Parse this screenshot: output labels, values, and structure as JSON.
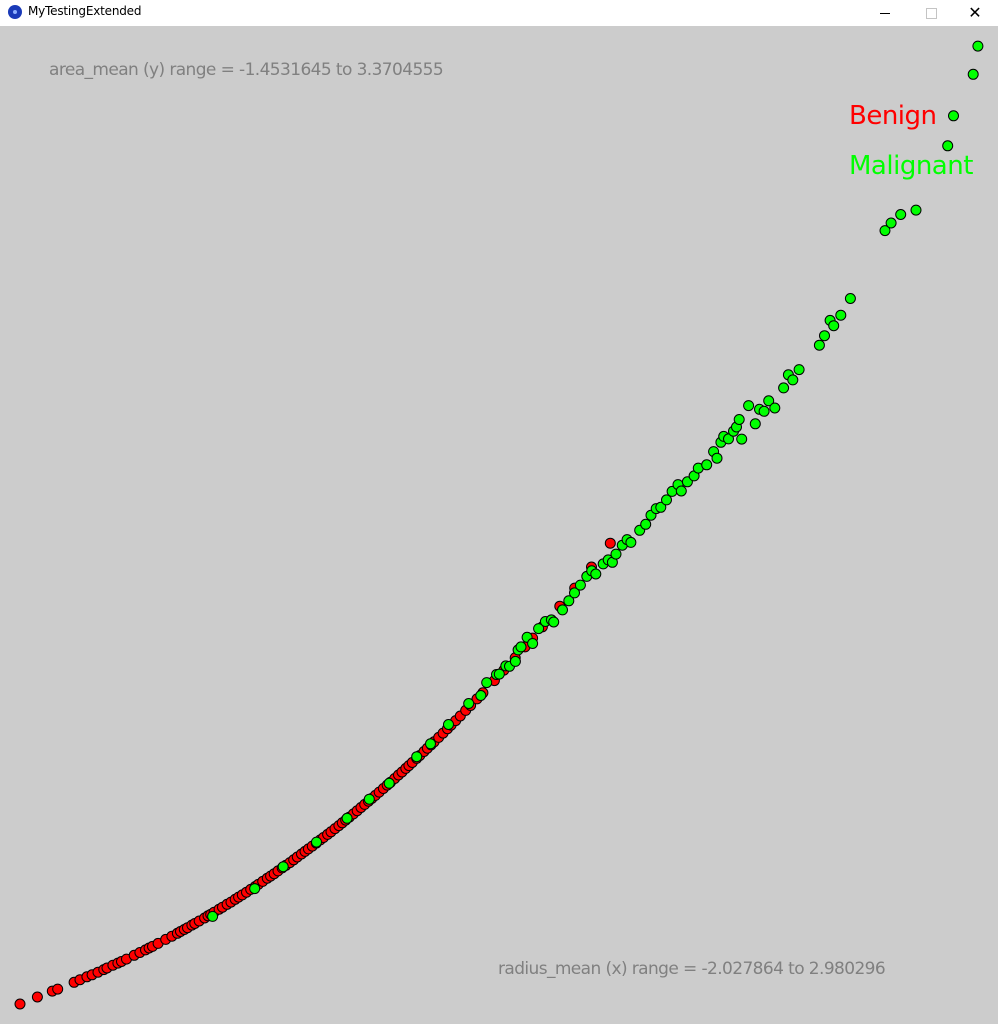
{
  "window": {
    "title": "MyTestingExtended",
    "minimize_icon": "minimize-icon",
    "maximize_icon": "maximize-icon",
    "close_icon": "close-icon",
    "close_glyph": "✕"
  },
  "colors": {
    "background": "#cccccc",
    "benign": "#ff0000",
    "malignant": "#00ff00",
    "point_stroke": "#000000",
    "label_gray": "#808080"
  },
  "chart_data": {
    "type": "scatter",
    "title": "",
    "y_range_text": "area_mean (y) range = -1.4531645 to 3.3704555",
    "x_range_text": "radius_mean (x) range = -2.027864 to 2.980296",
    "xlim": [
      -2.027864,
      2.980296
    ],
    "ylim": [
      -1.4531645,
      3.3704555
    ],
    "grid": false,
    "legend_position": "top-right",
    "series": [
      {
        "name": "Benign",
        "color": "#ff0000",
        "points": [
          [
            -2.028,
            -1.453
          ],
          [
            -1.937,
            -1.418
          ],
          [
            -1.859,
            -1.388
          ],
          [
            -1.831,
            -1.378
          ],
          [
            -1.745,
            -1.344
          ],
          [
            -1.714,
            -1.331
          ],
          [
            -1.678,
            -1.316
          ],
          [
            -1.651,
            -1.306
          ],
          [
            -1.62,
            -1.293
          ],
          [
            -1.59,
            -1.28
          ],
          [
            -1.573,
            -1.272
          ],
          [
            -1.542,
            -1.258
          ],
          [
            -1.516,
            -1.247
          ],
          [
            -1.497,
            -1.239
          ],
          [
            -1.471,
            -1.227
          ],
          [
            -1.431,
            -1.208
          ],
          [
            -1.401,
            -1.194
          ],
          [
            -1.372,
            -1.181
          ],
          [
            -1.353,
            -1.171
          ],
          [
            -1.335,
            -1.163
          ],
          [
            -1.306,
            -1.148
          ],
          [
            -1.266,
            -1.128
          ],
          [
            -1.234,
            -1.112
          ],
          [
            -1.205,
            -1.097
          ],
          [
            -1.189,
            -1.088
          ],
          [
            -1.169,
            -1.078
          ],
          [
            -1.152,
            -1.069
          ],
          [
            -1.129,
            -1.056
          ],
          [
            -1.114,
            -1.048
          ],
          [
            -1.091,
            -1.035
          ],
          [
            -1.063,
            -1.02
          ],
          [
            -1.045,
            -1.009
          ],
          [
            -1.031,
            -1.002
          ],
          [
            -1.013,
            -0.991
          ],
          [
            -0.987,
            -0.976
          ],
          [
            -0.969,
            -0.966
          ],
          [
            -0.945,
            -0.951
          ],
          [
            -0.925,
            -0.94
          ],
          [
            -0.903,
            -0.926
          ],
          [
            -0.885,
            -0.915
          ],
          [
            -0.866,
            -0.904
          ],
          [
            -0.844,
            -0.89
          ],
          [
            -0.822,
            -0.876
          ],
          [
            -0.798,
            -0.861
          ],
          [
            -0.782,
            -0.851
          ],
          [
            -0.759,
            -0.836
          ],
          [
            -0.735,
            -0.82
          ],
          [
            -0.718,
            -0.809
          ],
          [
            -0.699,
            -0.797
          ],
          [
            -0.679,
            -0.783
          ],
          [
            -0.657,
            -0.768
          ],
          [
            -0.638,
            -0.755
          ],
          [
            -0.617,
            -0.741
          ],
          [
            -0.597,
            -0.727
          ],
          [
            -0.578,
            -0.713
          ],
          [
            -0.556,
            -0.698
          ],
          [
            -0.538,
            -0.685
          ],
          [
            -0.52,
            -0.672
          ],
          [
            -0.5,
            -0.658
          ],
          [
            -0.479,
            -0.643
          ],
          [
            -0.458,
            -0.627
          ],
          [
            -0.441,
            -0.615
          ],
          [
            -0.42,
            -0.599
          ],
          [
            -0.402,
            -0.586
          ],
          [
            -0.381,
            -0.57
          ],
          [
            -0.361,
            -0.555
          ],
          [
            -0.343,
            -0.541
          ],
          [
            -0.325,
            -0.527
          ],
          [
            -0.306,
            -0.512
          ],
          [
            -0.285,
            -0.496
          ],
          [
            -0.265,
            -0.48
          ],
          [
            -0.245,
            -0.464
          ],
          [
            -0.226,
            -0.448
          ],
          [
            -0.206,
            -0.432
          ],
          [
            -0.188,
            -0.418
          ],
          [
            -0.17,
            -0.403
          ],
          [
            -0.15,
            -0.386
          ],
          [
            -0.128,
            -0.368
          ],
          [
            -0.108,
            -0.351
          ],
          [
            -0.091,
            -0.337
          ],
          [
            -0.069,
            -0.318
          ],
          [
            -0.049,
            -0.3
          ],
          [
            -0.031,
            -0.285
          ],
          [
            -0.011,
            -0.267
          ],
          [
            0.005,
            -0.253
          ],
          [
            0.023,
            -0.237
          ],
          [
            0.046,
            -0.216
          ],
          [
            0.062,
            -0.202
          ],
          [
            0.084,
            -0.182
          ],
          [
            0.102,
            -0.165
          ],
          [
            0.121,
            -0.148
          ],
          [
            0.137,
            -0.133
          ],
          [
            0.161,
            -0.111
          ],
          [
            0.184,
            -0.089
          ],
          [
            0.207,
            -0.067
          ],
          [
            0.226,
            -0.049
          ],
          [
            0.25,
            -0.026
          ],
          [
            0.274,
            -0.003
          ],
          [
            0.302,
            0.025
          ],
          [
            0.328,
            0.05
          ],
          [
            0.361,
            0.083
          ],
          [
            0.392,
            0.114
          ],
          [
            0.452,
            0.175
          ],
          [
            0.502,
            0.228
          ],
          [
            0.561,
            0.29
          ],
          [
            0.612,
            0.345
          ],
          [
            0.652,
            0.389
          ],
          [
            0.703,
            0.446
          ],
          [
            0.794,
            0.55
          ],
          [
            0.872,
            0.641
          ],
          [
            0.96,
            0.747
          ],
          [
            1.058,
            0.867
          ]
        ]
      },
      {
        "name": "Malignant",
        "color": "#00ff00",
        "points": [
          [
            -1.021,
            -1.012
          ],
          [
            -0.801,
            -0.872
          ],
          [
            -0.652,
            -0.762
          ],
          [
            -0.478,
            -0.638
          ],
          [
            -0.318,
            -0.518
          ],
          [
            -0.202,
            -0.422
          ],
          [
            -0.098,
            -0.342
          ],
          [
            0.046,
            -0.208
          ],
          [
            0.118,
            -0.143
          ],
          [
            0.212,
            -0.046
          ],
          [
            0.318,
            0.06
          ],
          [
            0.381,
            0.1
          ],
          [
            0.412,
            0.165
          ],
          [
            0.463,
            0.206
          ],
          [
            0.478,
            0.208
          ],
          [
            0.512,
            0.249
          ],
          [
            0.531,
            0.247
          ],
          [
            0.562,
            0.272
          ],
          [
            0.576,
            0.33
          ],
          [
            0.591,
            0.345
          ],
          [
            0.623,
            0.393
          ],
          [
            0.652,
            0.362
          ],
          [
            0.683,
            0.437
          ],
          [
            0.719,
            0.473
          ],
          [
            0.75,
            0.481
          ],
          [
            0.762,
            0.47
          ],
          [
            0.808,
            0.531
          ],
          [
            0.841,
            0.577
          ],
          [
            0.871,
            0.617
          ],
          [
            0.902,
            0.656
          ],
          [
            0.935,
            0.7
          ],
          [
            0.961,
            0.728
          ],
          [
            0.982,
            0.712
          ],
          [
            1.021,
            0.763
          ],
          [
            1.047,
            0.783
          ],
          [
            1.069,
            0.771
          ],
          [
            1.088,
            0.812
          ],
          [
            1.121,
            0.857
          ],
          [
            1.146,
            0.885
          ],
          [
            1.166,
            0.871
          ],
          [
            1.212,
            0.932
          ],
          [
            1.243,
            0.962
          ],
          [
            1.271,
            1.008
          ],
          [
            1.298,
            1.041
          ],
          [
            1.322,
            1.048
          ],
          [
            1.352,
            1.085
          ],
          [
            1.381,
            1.128
          ],
          [
            1.412,
            1.162
          ],
          [
            1.429,
            1.13
          ],
          [
            1.461,
            1.176
          ],
          [
            1.496,
            1.206
          ],
          [
            1.518,
            1.245
          ],
          [
            1.562,
            1.262
          ],
          [
            1.598,
            1.328
          ],
          [
            1.616,
            1.295
          ],
          [
            1.636,
            1.375
          ],
          [
            1.651,
            1.405
          ],
          [
            1.676,
            1.392
          ],
          [
            1.702,
            1.431
          ],
          [
            1.718,
            1.452
          ],
          [
            1.745,
            1.391
          ],
          [
            1.732,
            1.49
          ],
          [
            1.781,
            1.56
          ],
          [
            1.816,
            1.468
          ],
          [
            1.838,
            1.541
          ],
          [
            1.862,
            1.531
          ],
          [
            1.886,
            1.584
          ],
          [
            1.918,
            1.548
          ],
          [
            1.964,
            1.649
          ],
          [
            1.989,
            1.715
          ],
          [
            2.012,
            1.689
          ],
          [
            2.045,
            1.741
          ],
          [
            2.151,
            1.864
          ],
          [
            2.178,
            1.912
          ],
          [
            2.207,
            1.989
          ],
          [
            2.226,
            1.962
          ],
          [
            2.263,
            2.015
          ],
          [
            2.313,
            2.099
          ],
          [
            2.494,
            2.441
          ],
          [
            2.526,
            2.479
          ],
          [
            2.576,
            2.522
          ],
          [
            2.656,
            2.544
          ],
          [
            2.822,
            2.868
          ],
          [
            2.852,
            3.019
          ],
          [
            2.955,
            3.228
          ],
          [
            2.98,
            3.37
          ]
        ]
      }
    ]
  }
}
